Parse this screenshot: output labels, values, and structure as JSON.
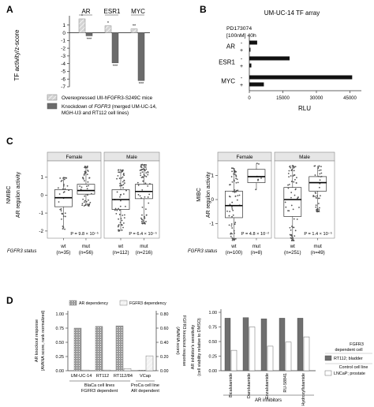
{
  "panels": {
    "A": {
      "letter": "A",
      "ylabel": "TF activity/z-score",
      "groups": [
        "AR",
        "ESR1",
        "MYC"
      ],
      "yticks": [
        1,
        0,
        -1,
        -2,
        -3,
        -4,
        -5,
        -6,
        -7
      ],
      "sig_top": [
        "*",
        "*",
        "**"
      ],
      "sig_bottom": [
        "***",
        "***",
        "***"
      ],
      "legend": [
        {
          "label": "Overexpressed UII-hFGFR3-S249C mice",
          "color": "#cccccc",
          "pattern": "hatch"
        },
        {
          "label_parts": [
            "Knockdown of ",
            "FGFR3",
            " (merged UM-UC-14,"
          ],
          "label2": "MGH-U3 and RT112 cell lines)",
          "color": "#6b6b6b",
          "pattern": "solid"
        }
      ]
    },
    "B": {
      "letter": "B",
      "title": "UM-UC-14 TF array",
      "drug_line1": "PD173074",
      "drug_line2": "[100nM] 40h",
      "xlabel": "RLU",
      "xticks": [
        0,
        15000,
        30000,
        45000
      ],
      "tick_labels": [
        "0",
        "15000",
        "30000",
        "45000"
      ],
      "rows": [
        "AR",
        "ESR1",
        "MYC"
      ],
      "signs": [
        "-",
        "+"
      ]
    },
    "C": {
      "letter": "C",
      "left_ylabel1": "NMIBC",
      "left_ylabel2": "AR regulon activity",
      "right_ylabel1": "MIBC",
      "right_ylabel2": "AR regulon activity",
      "strip_female": "Female",
      "strip_male": "Male",
      "status_label": "FGFR3 status",
      "left_yticks": [
        "1",
        "0",
        "-1",
        "-2"
      ],
      "right_yticks": [
        "1",
        "0",
        "-1"
      ],
      "pvals": [
        "P = 9.8 × 10⁻⁵",
        "P = 6.4 × 10⁻⁵",
        "P = 4.8 × 10⁻²",
        "P = 1.4 × 10⁻⁵"
      ],
      "categories": [
        {
          "label": "wt",
          "n": "(n=35)"
        },
        {
          "label": "mut",
          "n": "(n=56)"
        },
        {
          "label": "wt",
          "n": "(n=112)"
        },
        {
          "label": "mut",
          "n": "(n=216)"
        },
        {
          "label": "wt",
          "n": "(n=100)"
        },
        {
          "label": "mut",
          "n": "(n=8)"
        },
        {
          "label": "wt",
          "n": "(n=251)"
        },
        {
          "label": "mut",
          "n": "(n=49)"
        }
      ]
    },
    "D": {
      "letter": "D",
      "legend_ar": "AR dependency",
      "legend_fgfr3": "FGFR3 dependency",
      "left_ylabel1": "AR knockout response",
      "left_ylabel2": "(AVANA score, rank normalized)",
      "right_ylabel1": "FGFR3 knockout response",
      "right_ylabel2": "(AVANA score)",
      "left_yticks": [
        "1.00",
        "0.75",
        "0.50",
        "0.25",
        "0.00"
      ],
      "right_yticks": [
        "0.80",
        "0.60",
        "0.40",
        "0.20",
        "0.00"
      ],
      "cells": [
        "UM-UC-14",
        "RT112",
        "RT112/84",
        "VCap"
      ],
      "group1_l1": "BlaCa cell lines",
      "group1_l2": "FGFR3 dependent",
      "group2_l1": "ProCa cell line",
      "group2_l2": "AR dependent",
      "inhib_ylabel1": "AR inhibitor's sensitivity",
      "inhib_ylabel2": "(cell viability relative to DMSO)",
      "inhib_yticks": [
        "1.00",
        "0.75",
        "0.50",
        "0.25",
        "0.00"
      ],
      "drugs": [
        "Bicalutamide",
        "Darolutamide",
        "Enzalutamide",
        "RU-58841",
        "Hydroxyflutamide"
      ],
      "inhib_group": "AR inhibitors",
      "legend2_title1": "FGFR3",
      "legend2_title2": "dependent cell",
      "legend2_item1": "RT112; bladder",
      "legend2_sub1": "Control cell line",
      "legend2_item2": "LNCaP; prostate"
    }
  },
  "chart_data": [
    {
      "type": "bar",
      "panel": "A",
      "categories": [
        "AR",
        "ESR1",
        "MYC"
      ],
      "series": [
        {
          "name": "Overexpressed UII-hFGFR3-S249C mice",
          "values": [
            1.8,
            0.9,
            0.5
          ]
        },
        {
          "name": "Knockdown of FGFR3 (merged UM-UC-14, MGH-U3 and RT112 cell lines)",
          "values": [
            -0.4,
            -3.9,
            -6.2
          ]
        }
      ],
      "ylabel": "TF activity/z-score",
      "ylim": [
        -7,
        2
      ]
    },
    {
      "type": "bar",
      "panel": "B",
      "title": "UM-UC-14 TF array",
      "categories": [
        "AR -",
        "AR +",
        "ESR1 -",
        "ESR1 +",
        "MYC -",
        "MYC +"
      ],
      "values": [
        3500,
        500,
        18000,
        900,
        46000,
        6500
      ],
      "xlabel": "RLU",
      "xlim": [
        0,
        48000
      ]
    },
    {
      "type": "box",
      "panel": "C",
      "ylabel": "AR regulon activity",
      "groups": [
        {
          "cohort": "NMIBC",
          "sex": "Female",
          "status": "wt",
          "n": 35,
          "q1": -0.65,
          "median": -0.15,
          "q3": 0.3,
          "whisker_low": -1.9,
          "whisker_high": 1.0
        },
        {
          "cohort": "NMIBC",
          "sex": "Female",
          "status": "mut",
          "n": 56,
          "q1": 0.05,
          "median": 0.25,
          "q3": 0.6,
          "whisker_low": -0.6,
          "whisker_high": 1.6
        },
        {
          "cohort": "NMIBC",
          "sex": "Male",
          "status": "wt",
          "n": 112,
          "q1": -0.8,
          "median": -0.25,
          "q3": 0.3,
          "whisker_low": -2.0,
          "whisker_high": 1.4
        },
        {
          "cohort": "NMIBC",
          "sex": "Male",
          "status": "mut",
          "n": 216,
          "q1": -0.2,
          "median": 0.2,
          "q3": 0.6,
          "whisker_low": -1.6,
          "whisker_high": 1.7
        },
        {
          "cohort": "MIBC",
          "sex": "Female",
          "status": "wt",
          "n": 100,
          "q1": -0.75,
          "median": -0.25,
          "q3": 0.35,
          "whisker_low": -1.7,
          "whisker_high": 1.3
        },
        {
          "cohort": "MIBC",
          "sex": "Female",
          "status": "mut",
          "n": 8,
          "q1": 0.7,
          "median": 0.95,
          "q3": 1.25,
          "whisker_low": 0.4,
          "whisker_high": 1.5
        },
        {
          "cohort": "MIBC",
          "sex": "Male",
          "status": "wt",
          "n": 251,
          "q1": -0.7,
          "median": 0.0,
          "q3": 0.5,
          "whisker_low": -1.7,
          "whisker_high": 1.4
        },
        {
          "cohort": "MIBC",
          "sex": "Male",
          "status": "mut",
          "n": 49,
          "q1": 0.35,
          "median": 0.7,
          "q3": 0.95,
          "whisker_low": -0.5,
          "whisker_high": 1.4
        }
      ],
      "pvalues": [
        "P = 9.8 × 10⁻⁵",
        "P = 6.4 × 10⁻⁵",
        "P = 4.8 × 10⁻²",
        "P = 1.4 × 10⁻⁵"
      ]
    },
    {
      "type": "bar",
      "panel": "D-left",
      "categories": [
        "UM-UC-14",
        "RT112",
        "RT112/84",
        "VCap"
      ],
      "series": [
        {
          "name": "AR dependency",
          "values": [
            0.75,
            0.78,
            0.79,
            0.01
          ]
        },
        {
          "name": "FGFR3 dependency",
          "values": [
            0.01,
            0.01,
            0.03,
            0.21
          ]
        }
      ],
      "ylabel": "AR knockout response (AVANA score, rank normalized)",
      "ylim": [
        0,
        1.0
      ],
      "y2label": "FGFR3 knockout response (AVANA score)",
      "y2lim": [
        0,
        0.8
      ]
    },
    {
      "type": "bar",
      "panel": "D-right",
      "categories": [
        "Bicalutamide",
        "Darolutamide",
        "Enzalutamide",
        "RU-58841",
        "Hydroxyflutamide"
      ],
      "series": [
        {
          "name": "RT112; bladder",
          "values": [
            0.9,
            0.91,
            0.89,
            0.9,
            0.9
          ]
        },
        {
          "name": "LNCaP; prostate",
          "values": [
            0.35,
            0.75,
            0.42,
            0.49,
            0.58
          ]
        }
      ],
      "ylabel": "AR inhibitor's sensitivity (cell viability relative to DMSO)",
      "ylim": [
        0,
        1.0
      ]
    }
  ]
}
